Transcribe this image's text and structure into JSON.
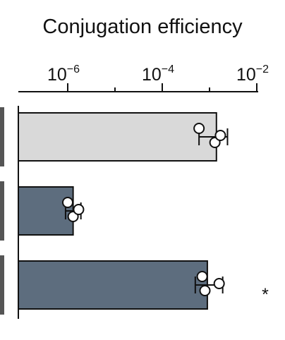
{
  "chart_data": {
    "type": "bar",
    "title": "Conjugation efficiency",
    "xlabel": "",
    "ylabel": "",
    "x_scale": "log",
    "xlim": [
      3e-07,
      0.01
    ],
    "x_ticks": [
      {
        "value": 1e-06,
        "base": "10",
        "exp": "−6"
      },
      {
        "value": 0.0001,
        "base": "10",
        "exp": "−4"
      },
      {
        "value": 0.01,
        "base": "10",
        "exp": "−2"
      }
    ],
    "categories": [
      "",
      "",
      ""
    ],
    "bars": [
      {
        "value": 0.0014,
        "fill": "#d9d9d9",
        "points": [
          0.0006,
          0.0013,
          0.0017
        ],
        "error": [
          0.0006,
          0.0024
        ],
        "annotation": ""
      },
      {
        "value": 1.3e-06,
        "fill": "#5d6d7e",
        "points": [
          1e-06,
          1.3e-06,
          1.7e-06
        ],
        "error": [
          9e-07,
          1.9e-06
        ],
        "annotation": ""
      },
      {
        "value": 0.0009,
        "fill": "#5d6d7e",
        "points": [
          0.0007,
          0.0008,
          0.0016
        ],
        "error": [
          0.0005,
          0.0019
        ],
        "annotation": "*"
      }
    ],
    "grid": false,
    "legend": "none"
  },
  "colors": {
    "axis": "#111111",
    "left_label_block": "#555555",
    "marker_fill": "#ffffff",
    "marker_stroke": "#111111"
  }
}
